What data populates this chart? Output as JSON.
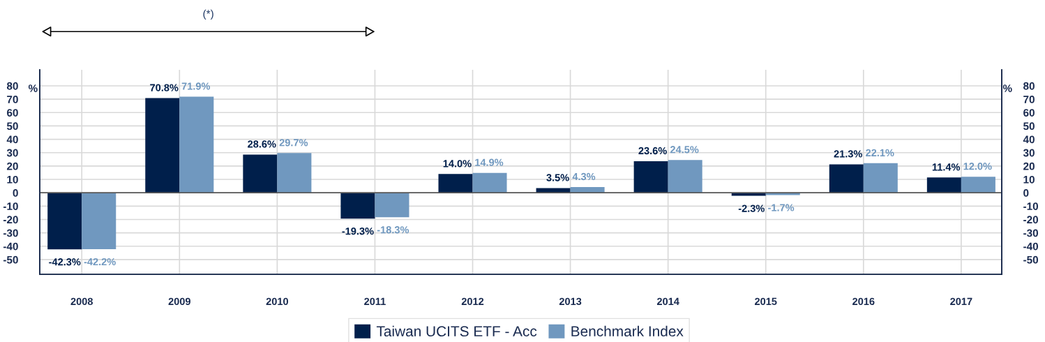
{
  "chart_data": {
    "type": "bar",
    "categories": [
      "2008",
      "2009",
      "2010",
      "2011",
      "2012",
      "2013",
      "2014",
      "2015",
      "2016",
      "2017"
    ],
    "series": [
      {
        "name": "Taiwan UCITS ETF - Acc",
        "color": "#001f4b",
        "values": [
          -42.3,
          70.8,
          28.6,
          -19.3,
          14.0,
          3.5,
          23.6,
          -2.3,
          21.3,
          11.4
        ],
        "value_labels": [
          "-42.3%",
          "70.8%",
          "28.6%",
          "-19.3%",
          "14.0%",
          "3.5%",
          "23.6%",
          "-2.3%",
          "21.3%",
          "11.4%"
        ]
      },
      {
        "name": "Benchmark Index",
        "color": "#7098bf",
        "values": [
          -42.2,
          71.9,
          29.7,
          -18.3,
          14.9,
          4.3,
          24.5,
          -1.7,
          22.1,
          12.0
        ],
        "value_labels": [
          "-42.2%",
          "71.9%",
          "29.7%",
          "-18.3%",
          "14.9%",
          "4.3%",
          "24.5%",
          "-1.7%",
          "22.1%",
          "12.0%"
        ]
      }
    ],
    "ylabel": "%",
    "y2label": "%",
    "ylim": [
      -61,
      92
    ],
    "yticks": [
      -50,
      -40,
      -30,
      -20,
      -10,
      0,
      10,
      20,
      30,
      40,
      50,
      60,
      70,
      80
    ],
    "y2lim": [
      -61,
      92
    ],
    "y2ticks": [
      -50,
      -40,
      -30,
      -20,
      -10,
      0,
      10,
      20,
      30,
      40,
      50,
      60,
      70,
      80
    ],
    "annotations": [
      "(*)"
    ],
    "grid": true,
    "legend": "bottom"
  }
}
